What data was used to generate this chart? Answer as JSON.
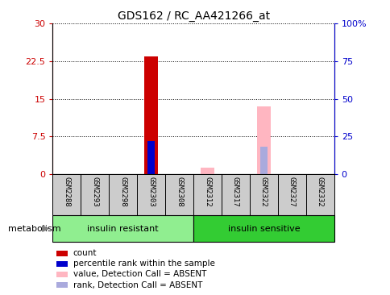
{
  "title": "GDS162 / RC_AA421266_at",
  "samples": [
    "GSM2288",
    "GSM2293",
    "GSM2298",
    "GSM2303",
    "GSM2308",
    "GSM2312",
    "GSM2317",
    "GSM2322",
    "GSM2327",
    "GSM2332"
  ],
  "groups": {
    "insulin resistant": [
      0,
      1,
      2,
      3,
      4
    ],
    "insulin sensitive": [
      5,
      6,
      7,
      8,
      9
    ]
  },
  "group_colors": {
    "insulin resistant": "#90EE90",
    "insulin sensitive": "#33CC33"
  },
  "ylim_left": [
    0,
    30
  ],
  "ylim_right": [
    0,
    100
  ],
  "yticks_left": [
    0,
    7.5,
    15,
    22.5,
    30
  ],
  "ytick_labels_left": [
    "0",
    "7.5",
    "15",
    "22.5",
    "30"
  ],
  "yticks_right": [
    0,
    25,
    50,
    75,
    100
  ],
  "ytick_labels_right": [
    "0",
    "25",
    "50",
    "75",
    "100%"
  ],
  "count_bars": {
    "GSM2303": 23.5
  },
  "count_color": "#CC0000",
  "rank_bars": {
    "GSM2303": 6.5
  },
  "rank_color": "#0000CC",
  "absent_value_bars": {
    "GSM2312": 1.2,
    "GSM2322": 13.5
  },
  "absent_value_color": "#FFB6C1",
  "absent_rank_bars": {
    "GSM2322": 5.5
  },
  "absent_rank_color": "#AAAADD",
  "background_color": "#FFFFFF",
  "tick_label_area_color": "#CCCCCC",
  "legend_items": [
    {
      "label": "count",
      "color": "#CC0000"
    },
    {
      "label": "percentile rank within the sample",
      "color": "#0000CC"
    },
    {
      "label": "value, Detection Call = ABSENT",
      "color": "#FFB6C1"
    },
    {
      "label": "rank, Detection Call = ABSENT",
      "color": "#AAAADD"
    }
  ],
  "left_axis_color": "#CC0000",
  "right_axis_color": "#0000CC",
  "metabolism_label": "metabolism",
  "bar_width": 0.5
}
